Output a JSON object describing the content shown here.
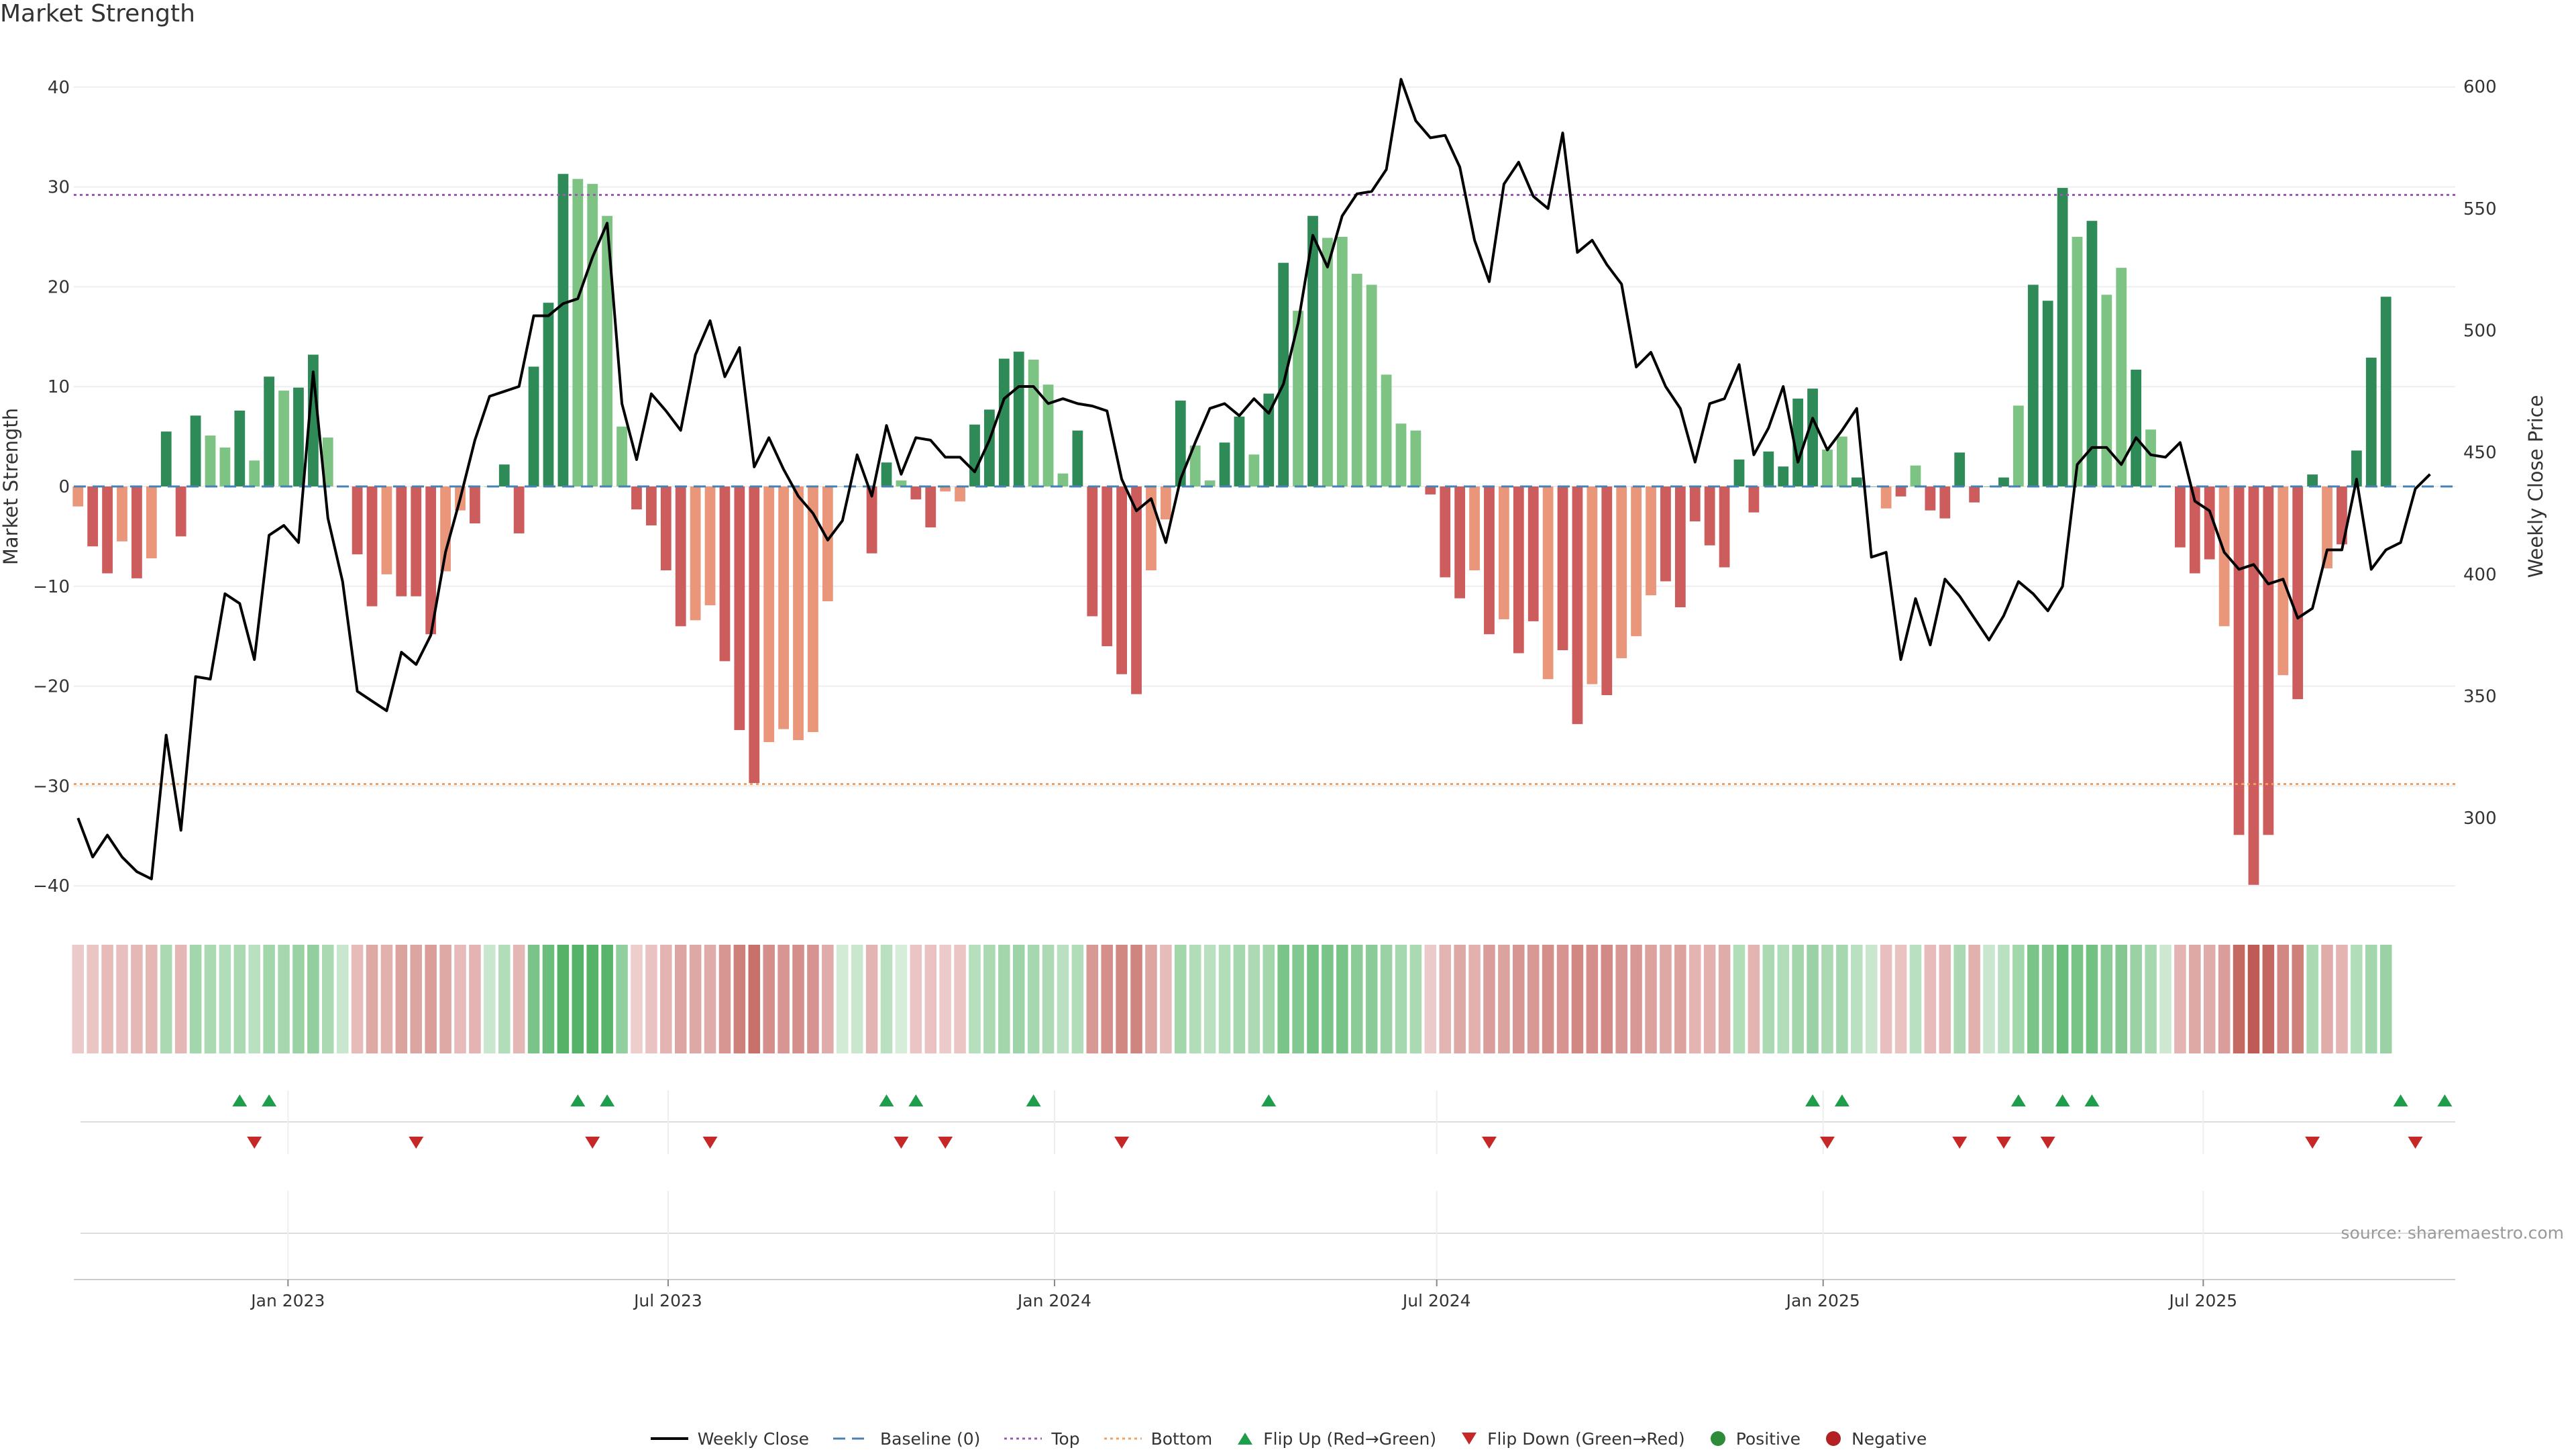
{
  "title": "Market Strength",
  "source": "source: sharemaestro.com",
  "colors": {
    "pos_strong": "#2e8b57",
    "pos_light": "#7dc383",
    "neg_strong": "#cd5c5c",
    "neg_light": "#e9967a",
    "close": "#000000",
    "baseline": "#4682b4",
    "top": "#9b59b6",
    "bottom": "#f0a060",
    "flip_up": "#1e9e4a",
    "flip_down": "#c62828"
  },
  "legend": [
    {
      "key": "close",
      "label": "Weekly Close"
    },
    {
      "key": "baseline",
      "label": "Baseline (0)"
    },
    {
      "key": "top",
      "label": "Top"
    },
    {
      "key": "bottom",
      "label": "Bottom"
    },
    {
      "key": "flip_up",
      "label": "Flip Up (Red→Green)"
    },
    {
      "key": "flip_down",
      "label": "Flip Down (Green→Red)"
    },
    {
      "key": "positive",
      "label": "Positive"
    },
    {
      "key": "negative",
      "label": "Negative"
    }
  ],
  "chart_data": {
    "type": "bar",
    "ylabel": "Market Strength",
    "y2label": "Weekly Close Price",
    "ylim": [
      -42,
      42
    ],
    "yticks": [
      40,
      30,
      20,
      10,
      0,
      -10,
      -20,
      -30,
      -40
    ],
    "y2lim": [
      264,
      608
    ],
    "y2ticks": [
      600,
      550,
      500,
      450,
      400,
      350,
      300
    ],
    "top_threshold": 29.2,
    "bottom_threshold": -29.8,
    "x_range": [
      "2022-09-21",
      "2025-10-29"
    ],
    "xticks": [
      {
        "date": "2023-01-01",
        "label": "Jan 2023"
      },
      {
        "date": "2023-07-01",
        "label": "Jul 2023"
      },
      {
        "date": "2024-01-01",
        "label": "Jan 2024"
      },
      {
        "date": "2024-07-01",
        "label": "Jul 2024"
      },
      {
        "date": "2025-01-01",
        "label": "Jan 2025"
      },
      {
        "date": "2025-07-01",
        "label": "Jul 2025"
      }
    ],
    "start_week": "2022-09-23",
    "strength": [
      -2,
      -6,
      -8.7,
      -5.5,
      -9.2,
      -7.2,
      5.5,
      -5,
      7.1,
      5.1,
      3.9,
      7.6,
      2.6,
      11,
      9.6,
      9.9,
      13.2,
      4.9,
      0,
      -6.8,
      -12,
      -8.8,
      -11,
      -11,
      -14.8,
      -8.5,
      -2.4,
      -3.7,
      0,
      2.2,
      -4.7,
      12,
      18.4,
      31.3,
      30.8,
      30.3,
      27.1,
      6,
      -2.3,
      -3.9,
      -8.4,
      -14,
      -13.4,
      -11.9,
      -17.5,
      -24.4,
      -29.7,
      -25.6,
      -24.3,
      -25.4,
      -24.6,
      -11.5,
      0,
      0,
      -6.7,
      2.4,
      0.6,
      -1.3,
      -4.1,
      -0.5,
      -1.5,
      6.2,
      7.7,
      12.8,
      13.5,
      12.7,
      10.2,
      1.3,
      5.6,
      -13,
      -16,
      -18.8,
      -20.8,
      -8.4,
      -3.3,
      8.6,
      4.1,
      0.6,
      4.4,
      7,
      3.2,
      9.3,
      22.4,
      17.6,
      27.1,
      24.9,
      25,
      21.3,
      20.2,
      11.2,
      6.3,
      5.6,
      -0.8,
      -9.1,
      -11.2,
      -8.4,
      -14.8,
      -13.3,
      -16.7,
      -13.5,
      -19.3,
      -16.4,
      -23.8,
      -19.8,
      -20.9,
      -17.2,
      -15,
      -10.9,
      -9.5,
      -12.1,
      -3.5,
      -5.9,
      -8.1,
      2.7,
      -2.6,
      3.5,
      2,
      8.8,
      9.8,
      3.7,
      5,
      0.9,
      0,
      -2.2,
      -1,
      2.1,
      -2.4,
      -3.2,
      3.4,
      -1.6,
      0,
      0.9,
      8.1,
      20.2,
      18.6,
      29.9,
      25,
      26.6,
      19.2,
      21.9,
      11.7,
      5.7,
      0,
      -6.1,
      -8.7,
      -7.3,
      -14,
      -34.9,
      -39.9,
      -34.9,
      -18.9,
      -21.3,
      1.2,
      -8.2,
      -5.8,
      3.6,
      12.9,
      19
    ],
    "strong": [
      0,
      1,
      1,
      0,
      1,
      0,
      1,
      1,
      1,
      0,
      0,
      1,
      0,
      1,
      0,
      1,
      1,
      0,
      0,
      1,
      1,
      0,
      1,
      1,
      1,
      0,
      0,
      1,
      0,
      1,
      1,
      1,
      1,
      1,
      0,
      0,
      0,
      0,
      1,
      1,
      1,
      1,
      0,
      0,
      1,
      1,
      1,
      0,
      0,
      0,
      0,
      0,
      0,
      0,
      1,
      1,
      0,
      1,
      1,
      0,
      0,
      1,
      1,
      1,
      1,
      0,
      0,
      0,
      1,
      1,
      1,
      1,
      1,
      0,
      0,
      1,
      0,
      0,
      1,
      1,
      0,
      1,
      1,
      0,
      1,
      0,
      0,
      0,
      0,
      0,
      0,
      0,
      1,
      1,
      1,
      0,
      1,
      0,
      1,
      1,
      0,
      1,
      1,
      0,
      1,
      0,
      0,
      0,
      1,
      1,
      1,
      1,
      1,
      1,
      1,
      1,
      1,
      1,
      1,
      0,
      0,
      1,
      1,
      0,
      1,
      0,
      1,
      1,
      1,
      1,
      1,
      1,
      0,
      1,
      1,
      1,
      0,
      1,
      0,
      0,
      1,
      0,
      0,
      1,
      1,
      1,
      0,
      1,
      1,
      1,
      0,
      1,
      1,
      0,
      1,
      1,
      1,
      1,
      0,
      1,
      1
    ],
    "close": [
      300,
      284,
      293,
      284,
      278,
      275,
      334,
      295,
      358,
      357,
      392,
      388,
      365,
      416,
      420,
      413,
      483,
      423,
      397,
      352,
      348,
      344,
      368,
      363,
      375,
      409,
      431,
      455,
      473,
      475,
      477,
      506,
      506,
      511,
      513,
      530,
      544,
      470,
      447,
      474,
      467,
      459,
      490,
      504,
      481,
      493,
      444,
      456,
      443,
      432,
      425,
      414,
      422,
      449,
      432,
      461,
      441,
      456,
      455,
      448,
      448,
      442,
      455,
      472,
      477,
      477,
      470,
      472,
      470,
      469,
      467,
      439,
      426,
      431,
      413,
      439,
      454,
      468,
      470,
      465,
      472,
      466,
      478,
      503,
      539,
      526,
      547,
      556,
      557,
      566,
      603,
      586,
      579,
      580,
      567,
      537,
      520,
      560,
      569,
      555,
      550,
      581,
      532,
      537,
      527,
      519,
      485,
      491,
      477,
      468,
      446,
      470,
      472,
      486,
      449,
      460,
      477,
      446,
      464,
      451,
      459,
      468,
      407,
      409,
      365,
      390,
      371,
      398,
      391,
      382,
      373,
      383,
      397,
      392,
      385,
      395,
      445,
      452,
      452,
      445,
      456,
      449,
      448,
      454,
      430,
      426,
      409,
      402,
      404,
      396,
      398,
      382,
      386,
      410,
      410,
      439,
      402,
      410,
      413,
      435,
      441
    ],
    "heat": [
      0.15,
      0.18,
      0.25,
      0.22,
      0.27,
      0.28,
      0.4,
      0.28,
      0.45,
      0.4,
      0.35,
      0.4,
      0.3,
      0.45,
      0.42,
      0.5,
      0.55,
      0.4,
      0.2,
      0.25,
      0.38,
      0.32,
      0.42,
      0.4,
      0.45,
      0.38,
      0.25,
      0.3,
      0.2,
      0.35,
      0.28,
      0.7,
      0.8,
      0.95,
      0.95,
      0.95,
      0.92,
      0.55,
      0.12,
      0.2,
      0.3,
      0.4,
      0.38,
      0.35,
      0.5,
      0.65,
      0.75,
      0.55,
      0.5,
      0.55,
      0.52,
      0.35,
      0.15,
      0.2,
      0.3,
      0.3,
      0.12,
      0.18,
      0.2,
      0.15,
      0.18,
      0.32,
      0.4,
      0.45,
      0.48,
      0.42,
      0.38,
      0.3,
      0.35,
      0.48,
      0.55,
      0.6,
      0.62,
      0.4,
      0.25,
      0.45,
      0.35,
      0.3,
      0.35,
      0.42,
      0.38,
      0.45,
      0.7,
      0.65,
      0.75,
      0.7,
      0.72,
      0.6,
      0.6,
      0.5,
      0.42,
      0.4,
      0.15,
      0.3,
      0.38,
      0.32,
      0.45,
      0.42,
      0.5,
      0.48,
      0.55,
      0.52,
      0.6,
      0.55,
      0.58,
      0.5,
      0.48,
      0.42,
      0.38,
      0.42,
      0.3,
      0.32,
      0.35,
      0.35,
      0.3,
      0.4,
      0.35,
      0.45,
      0.5,
      0.4,
      0.42,
      0.3,
      0.2,
      0.22,
      0.2,
      0.3,
      0.25,
      0.28,
      0.4,
      0.32,
      0.2,
      0.3,
      0.45,
      0.7,
      0.65,
      0.82,
      0.72,
      0.75,
      0.6,
      0.65,
      0.5,
      0.42,
      0.18,
      0.3,
      0.38,
      0.35,
      0.45,
      0.8,
      0.9,
      0.82,
      0.6,
      0.65,
      0.4,
      0.35,
      0.3,
      0.35,
      0.45,
      0.5
    ],
    "flip_up": [
      "2022-12-09",
      "2022-12-23",
      "2023-05-19",
      "2023-06-02",
      "2023-10-13",
      "2023-10-27",
      "2023-12-22",
      "2024-04-12",
      "2024-12-27",
      "2025-01-10",
      "2025-04-04",
      "2025-04-25",
      "2025-05-09",
      "2025-10-03",
      "2025-10-24"
    ],
    "flip_down": [
      "2022-12-16",
      "2023-03-03",
      "2023-05-26",
      "2023-07-21",
      "2023-10-20",
      "2023-11-10",
      "2024-02-02",
      "2024-07-26",
      "2025-01-03",
      "2025-03-07",
      "2025-03-28",
      "2025-04-18",
      "2025-08-22",
      "2025-10-10"
    ]
  }
}
